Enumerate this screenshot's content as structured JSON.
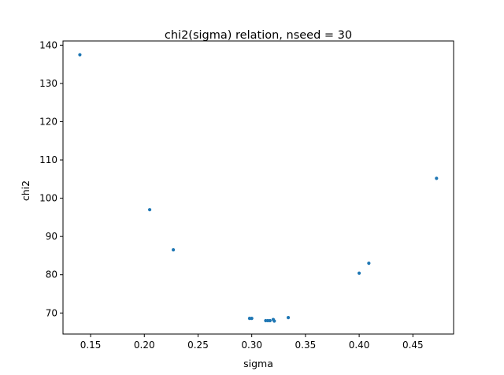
{
  "chart_data": {
    "type": "scatter",
    "title": "chi2(sigma) relation, nseed = 30",
    "xlabel": "sigma",
    "ylabel": "chi2",
    "xlim": [
      0.1243,
      0.4879
    ],
    "ylim": [
      64.5,
      141.1
    ],
    "xticks": [
      0.15,
      0.2,
      0.25,
      0.3,
      0.35,
      0.4,
      0.45
    ],
    "xtick_labels": [
      "0.15",
      "0.20",
      "0.25",
      "0.30",
      "0.35",
      "0.40",
      "0.45"
    ],
    "yticks": [
      70,
      80,
      90,
      100,
      110,
      120,
      130,
      140
    ],
    "ytick_labels": [
      "70",
      "80",
      "90",
      "100",
      "110",
      "120",
      "130",
      "140"
    ],
    "grid": false,
    "marker_color": "#1f77b4",
    "points": [
      {
        "x": 0.14,
        "y": 137.5
      },
      {
        "x": 0.205,
        "y": 97.0
      },
      {
        "x": 0.227,
        "y": 86.5
      },
      {
        "x": 0.298,
        "y": 68.6
      },
      {
        "x": 0.3,
        "y": 68.6
      },
      {
        "x": 0.313,
        "y": 68.0
      },
      {
        "x": 0.315,
        "y": 68.0
      },
      {
        "x": 0.317,
        "y": 68.0
      },
      {
        "x": 0.32,
        "y": 68.3
      },
      {
        "x": 0.321,
        "y": 67.9
      },
      {
        "x": 0.334,
        "y": 68.8
      },
      {
        "x": 0.4,
        "y": 80.4
      },
      {
        "x": 0.409,
        "y": 83.0
      },
      {
        "x": 0.472,
        "y": 105.2
      }
    ]
  }
}
